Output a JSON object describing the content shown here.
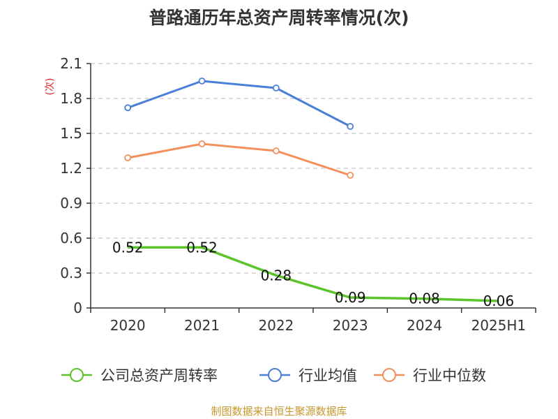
{
  "chart_data": {
    "type": "line",
    "title": "普路通历年总资产周转率情况(次)",
    "ylabel": "(次)",
    "categories": [
      "2020",
      "2021",
      "2022",
      "2023",
      "2024",
      "2025H1"
    ],
    "yticks": [
      "0",
      "0.3",
      "0.6",
      "0.9",
      "1.2",
      "1.5",
      "1.8",
      "2.1"
    ],
    "ylim": [
      0,
      2.1
    ],
    "grid": true,
    "legend_position": "bottom",
    "series": [
      {
        "name": "公司总资产周转率",
        "color": "#5cc42a",
        "values": [
          0.52,
          0.52,
          0.28,
          0.09,
          0.08,
          0.06
        ],
        "labels": [
          "0.52",
          "0.52",
          "0.28",
          "0.09",
          "0.08",
          "0.06"
        ]
      },
      {
        "name": "行业均值",
        "color": "#4a7fd8",
        "values": [
          1.72,
          1.95,
          1.89,
          1.56,
          null,
          null
        ]
      },
      {
        "name": "行业中位数",
        "color": "#f28f5a",
        "values": [
          1.29,
          1.41,
          1.35,
          1.14,
          null,
          null
        ]
      }
    ]
  },
  "source": "制图数据来自恒生聚源数据库"
}
